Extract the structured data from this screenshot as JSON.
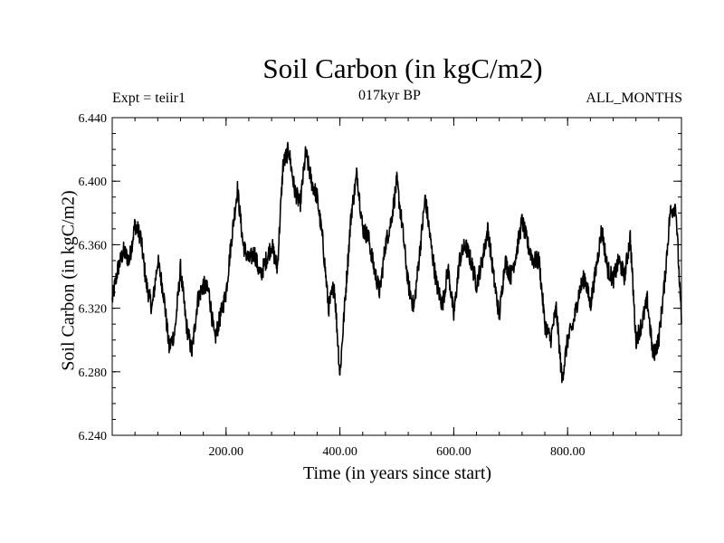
{
  "chart_data": {
    "type": "line",
    "title": "Soil Carbon (in kgC/m2)",
    "header_left": "Expt = teiir1",
    "header_center": "017kyr BP",
    "header_right": "ALL_MONTHS",
    "xlabel": "Time (in years since start)",
    "ylabel": "Soil Carbon (in kgC/m2)",
    "xlim": [
      0,
      1000
    ],
    "ylim": [
      6.24,
      6.44
    ],
    "x_ticks": [
      200,
      400,
      600,
      800
    ],
    "x_tick_labels": [
      "200.00",
      "400.00",
      "600.00",
      "800.00"
    ],
    "y_ticks": [
      6.24,
      6.28,
      6.32,
      6.36,
      6.4,
      6.44
    ],
    "y_tick_labels": [
      "6.240",
      "6.280",
      "6.320",
      "6.360",
      "6.400",
      "6.440"
    ],
    "grid": false,
    "line_color": "#000000",
    "series": [
      {
        "x": [
          0,
          10,
          20,
          30,
          40,
          50,
          60,
          70,
          80,
          90,
          100,
          110,
          120,
          130,
          140,
          150,
          160,
          170,
          180,
          190,
          200,
          210,
          220,
          230,
          240,
          250,
          260,
          270,
          280,
          290,
          300,
          310,
          320,
          330,
          340,
          350,
          360,
          370,
          380,
          390,
          400,
          410,
          420,
          430,
          440,
          450,
          460,
          470,
          480,
          490,
          500,
          510,
          520,
          530,
          540,
          550,
          560,
          570,
          580,
          590,
          600,
          610,
          620,
          630,
          640,
          650,
          660,
          670,
          680,
          690,
          700,
          710,
          720,
          730,
          740,
          750,
          760,
          770,
          780,
          790,
          800,
          810,
          820,
          830,
          840,
          850,
          860,
          870,
          880,
          890,
          900,
          910,
          920,
          930,
          940,
          950,
          960,
          970,
          980,
          990,
          1000
        ],
        "y": [
          6.325,
          6.345,
          6.356,
          6.35,
          6.373,
          6.365,
          6.335,
          6.32,
          6.35,
          6.33,
          6.295,
          6.305,
          6.345,
          6.31,
          6.292,
          6.325,
          6.335,
          6.33,
          6.3,
          6.315,
          6.33,
          6.365,
          6.395,
          6.36,
          6.35,
          6.355,
          6.34,
          6.35,
          6.36,
          6.345,
          6.41,
          6.42,
          6.395,
          6.385,
          6.418,
          6.4,
          6.39,
          6.362,
          6.32,
          6.335,
          6.278,
          6.33,
          6.38,
          6.405,
          6.37,
          6.365,
          6.345,
          6.33,
          6.36,
          6.375,
          6.4,
          6.37,
          6.335,
          6.32,
          6.355,
          6.39,
          6.36,
          6.335,
          6.322,
          6.345,
          6.315,
          6.35,
          6.36,
          6.35,
          6.335,
          6.35,
          6.37,
          6.34,
          6.315,
          6.35,
          6.34,
          6.355,
          6.375,
          6.36,
          6.35,
          6.35,
          6.31,
          6.3,
          6.32,
          6.275,
          6.3,
          6.31,
          6.33,
          6.34,
          6.322,
          6.345,
          6.37,
          6.345,
          6.338,
          6.35,
          6.34,
          6.365,
          6.3,
          6.31,
          6.325,
          6.29,
          6.3,
          6.335,
          6.38,
          6.385,
          6.31
        ]
      }
    ]
  }
}
